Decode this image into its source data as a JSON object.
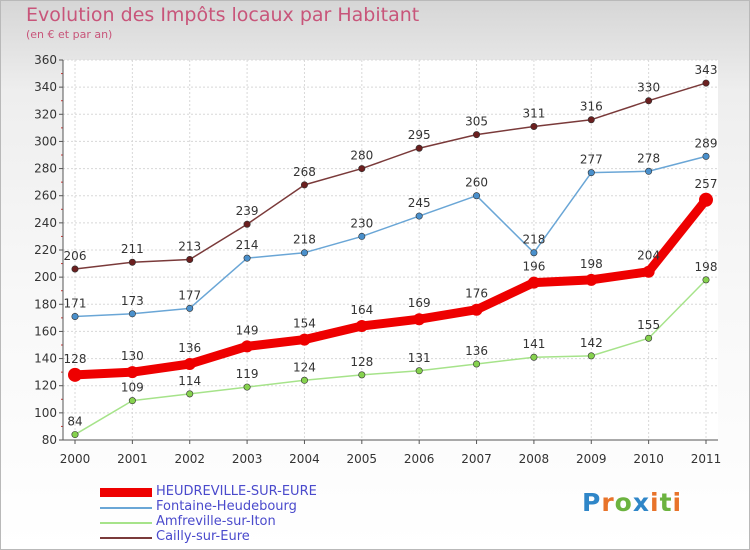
{
  "header": {
    "title": "Evolution des Impôts locaux par Habitant",
    "subtitle": "(en € et par an)"
  },
  "logo": {
    "text": "Proxiti",
    "colors": [
      "#2f86c8",
      "#e8732a",
      "#6cb33f",
      "#2f86c8",
      "#e8732a",
      "#6cb33f",
      "#e8732a"
    ]
  },
  "chart_data": {
    "type": "line",
    "title": "Evolution des Impôts locaux par Habitant",
    "subtitle": "(en € et par an)",
    "xlabel": "",
    "ylabel": "",
    "x": [
      "2000",
      "2001",
      "2002",
      "2003",
      "2004",
      "2005",
      "2006",
      "2007",
      "2008",
      "2009",
      "2010",
      "2011"
    ],
    "ylim": [
      80,
      360
    ],
    "yticks": [
      80,
      100,
      120,
      140,
      160,
      180,
      200,
      220,
      240,
      260,
      280,
      300,
      320,
      340,
      360
    ],
    "grid": true,
    "legend_position": "bottom-left",
    "series": [
      {
        "name": "HEUDREVILLE-SUR-EURE",
        "values": [
          128,
          130,
          136,
          149,
          154,
          164,
          169,
          176,
          196,
          198,
          204,
          257
        ],
        "color": "#ee0000",
        "emphasis": true
      },
      {
        "name": "Fontaine-Heudebourg",
        "values": [
          171,
          173,
          177,
          214,
          218,
          230,
          245,
          260,
          218,
          277,
          278,
          289
        ],
        "color": "#6aa6d6",
        "marker_fill": "#4a90cc"
      },
      {
        "name": "Amfreville-sur-Iton",
        "values": [
          84,
          109,
          114,
          119,
          124,
          128,
          131,
          136,
          141,
          142,
          155,
          198
        ],
        "color": "#a6e38a",
        "marker_fill": "#86d24e"
      },
      {
        "name": "Cailly-sur-Eure",
        "values": [
          206,
          211,
          213,
          239,
          268,
          280,
          295,
          305,
          311,
          316,
          330,
          343
        ],
        "color": "#7a3a3a",
        "marker_fill": "#6b1f1f"
      }
    ]
  }
}
